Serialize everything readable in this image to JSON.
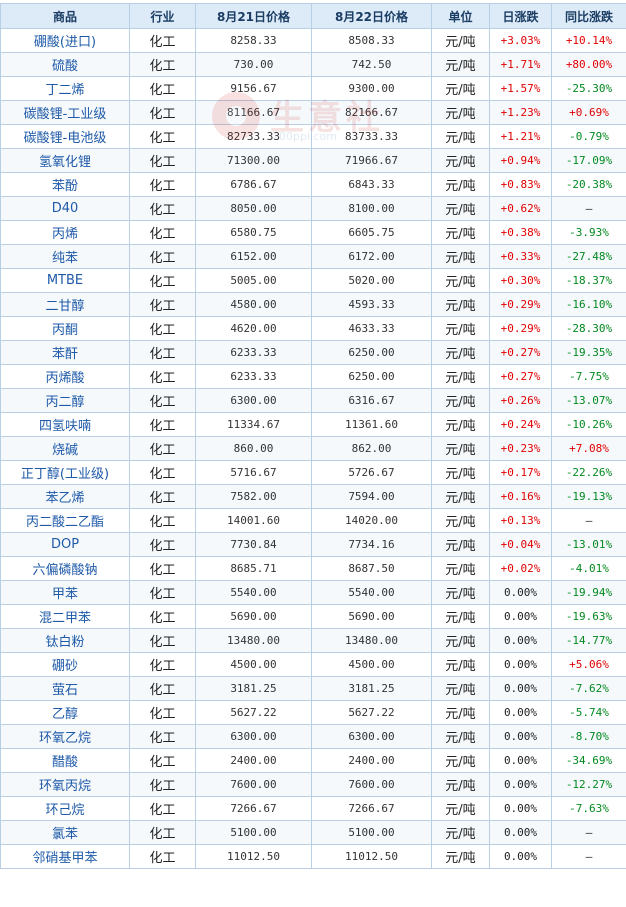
{
  "headers": [
    "商品",
    "行业",
    "8月21日价格",
    "8月22日价格",
    "单位",
    "日涨跌",
    "同比涨跌"
  ],
  "watermark": {
    "text": "生意社",
    "url": "100ppi.com"
  },
  "rows": [
    [
      "硼酸(进口)",
      "化工",
      "8258.33",
      "8508.33",
      "元/吨",
      "+3.03%",
      "+10.14%"
    ],
    [
      "硫酸",
      "化工",
      "730.00",
      "742.50",
      "元/吨",
      "+1.71%",
      "+80.00%"
    ],
    [
      "丁二烯",
      "化工",
      "9156.67",
      "9300.00",
      "元/吨",
      "+1.57%",
      "-25.30%"
    ],
    [
      "碳酸锂-工业级",
      "化工",
      "81166.67",
      "82166.67",
      "元/吨",
      "+1.23%",
      "+0.69%"
    ],
    [
      "碳酸锂-电池级",
      "化工",
      "82733.33",
      "83733.33",
      "元/吨",
      "+1.21%",
      "-0.79%"
    ],
    [
      "氢氧化锂",
      "化工",
      "71300.00",
      "71966.67",
      "元/吨",
      "+0.94%",
      "-17.09%"
    ],
    [
      "苯酚",
      "化工",
      "6786.67",
      "6843.33",
      "元/吨",
      "+0.83%",
      "-20.38%"
    ],
    [
      "D40",
      "化工",
      "8050.00",
      "8100.00",
      "元/吨",
      "+0.62%",
      "—"
    ],
    [
      "丙烯",
      "化工",
      "6580.75",
      "6605.75",
      "元/吨",
      "+0.38%",
      "-3.93%"
    ],
    [
      "纯苯",
      "化工",
      "6152.00",
      "6172.00",
      "元/吨",
      "+0.33%",
      "-27.48%"
    ],
    [
      "MTBE",
      "化工",
      "5005.00",
      "5020.00",
      "元/吨",
      "+0.30%",
      "-18.37%"
    ],
    [
      "二甘醇",
      "化工",
      "4580.00",
      "4593.33",
      "元/吨",
      "+0.29%",
      "-16.10%"
    ],
    [
      "丙酮",
      "化工",
      "4620.00",
      "4633.33",
      "元/吨",
      "+0.29%",
      "-28.30%"
    ],
    [
      "苯酐",
      "化工",
      "6233.33",
      "6250.00",
      "元/吨",
      "+0.27%",
      "-19.35%"
    ],
    [
      "丙烯酸",
      "化工",
      "6233.33",
      "6250.00",
      "元/吨",
      "+0.27%",
      "-7.75%"
    ],
    [
      "丙二醇",
      "化工",
      "6300.00",
      "6316.67",
      "元/吨",
      "+0.26%",
      "-13.07%"
    ],
    [
      "四氢呋喃",
      "化工",
      "11334.67",
      "11361.60",
      "元/吨",
      "+0.24%",
      "-10.26%"
    ],
    [
      "烧碱",
      "化工",
      "860.00",
      "862.00",
      "元/吨",
      "+0.23%",
      "+7.08%"
    ],
    [
      "正丁醇(工业级)",
      "化工",
      "5716.67",
      "5726.67",
      "元/吨",
      "+0.17%",
      "-22.26%"
    ],
    [
      "苯乙烯",
      "化工",
      "7582.00",
      "7594.00",
      "元/吨",
      "+0.16%",
      "-19.13%"
    ],
    [
      "丙二酸二乙酯",
      "化工",
      "14001.60",
      "14020.00",
      "元/吨",
      "+0.13%",
      "—"
    ],
    [
      "DOP",
      "化工",
      "7730.84",
      "7734.16",
      "元/吨",
      "+0.04%",
      "-13.01%"
    ],
    [
      "六偏磷酸钠",
      "化工",
      "8685.71",
      "8687.50",
      "元/吨",
      "+0.02%",
      "-4.01%"
    ],
    [
      "甲苯",
      "化工",
      "5540.00",
      "5540.00",
      "元/吨",
      "0.00%",
      "-19.94%"
    ],
    [
      "混二甲苯",
      "化工",
      "5690.00",
      "5690.00",
      "元/吨",
      "0.00%",
      "-19.63%"
    ],
    [
      "钛白粉",
      "化工",
      "13480.00",
      "13480.00",
      "元/吨",
      "0.00%",
      "-14.77%"
    ],
    [
      "硼砂",
      "化工",
      "4500.00",
      "4500.00",
      "元/吨",
      "0.00%",
      "+5.06%"
    ],
    [
      "萤石",
      "化工",
      "3181.25",
      "3181.25",
      "元/吨",
      "0.00%",
      "-7.62%"
    ],
    [
      "乙醇",
      "化工",
      "5627.22",
      "5627.22",
      "元/吨",
      "0.00%",
      "-5.74%"
    ],
    [
      "环氧乙烷",
      "化工",
      "6300.00",
      "6300.00",
      "元/吨",
      "0.00%",
      "-8.70%"
    ],
    [
      "醋酸",
      "化工",
      "2400.00",
      "2400.00",
      "元/吨",
      "0.00%",
      "-34.69%"
    ],
    [
      "环氧丙烷",
      "化工",
      "7600.00",
      "7600.00",
      "元/吨",
      "0.00%",
      "-12.27%"
    ],
    [
      "环己烷",
      "化工",
      "7266.67",
      "7266.67",
      "元/吨",
      "0.00%",
      "-7.63%"
    ],
    [
      "氯苯",
      "化工",
      "5100.00",
      "5100.00",
      "元/吨",
      "0.00%",
      "—"
    ],
    [
      "邻硝基甲苯",
      "化工",
      "11012.50",
      "11012.50",
      "元/吨",
      "0.00%",
      "—"
    ]
  ],
  "colors": {
    "up": "#e00000",
    "down": "#00891e",
    "header_bg": "#ddebf8",
    "border": "#b8cfe6",
    "link": "#1e5aa8"
  }
}
